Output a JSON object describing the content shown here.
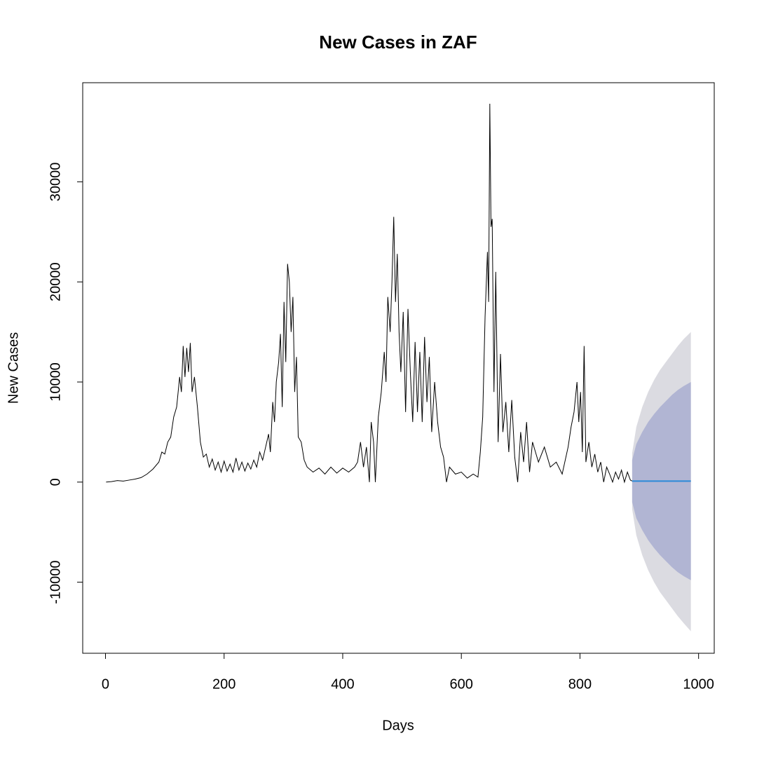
{
  "chart_data": {
    "type": "line",
    "title": "New Cases in ZAF",
    "x_label": "Days",
    "y_label": "New Cases",
    "xlim": [
      -38.4,
      1026.4
    ],
    "ylim": [
      -17100,
      39900
    ],
    "xticks": [
      0,
      200,
      400,
      600,
      800,
      1000
    ],
    "yticks": [
      -10000,
      0,
      10000,
      20000,
      30000
    ],
    "x": [
      1,
      10,
      20,
      30,
      40,
      50,
      60,
      70,
      80,
      90,
      95,
      100,
      105,
      110,
      115,
      120,
      125,
      128,
      131,
      134,
      137,
      140,
      143,
      146,
      150,
      155,
      160,
      165,
      170,
      175,
      180,
      185,
      190,
      195,
      200,
      205,
      210,
      215,
      220,
      225,
      230,
      235,
      240,
      245,
      250,
      255,
      260,
      265,
      270,
      275,
      278,
      282,
      285,
      288,
      292,
      295,
      298,
      301,
      304,
      307,
      310,
      313,
      316,
      319,
      322,
      325,
      330,
      335,
      340,
      350,
      360,
      370,
      380,
      390,
      400,
      410,
      420,
      425,
      430,
      435,
      440,
      445,
      448,
      452,
      455,
      460,
      465,
      470,
      473,
      476,
      480,
      483,
      486,
      489,
      492,
      495,
      498,
      502,
      506,
      510,
      514,
      518,
      522,
      526,
      530,
      534,
      538,
      542,
      546,
      550,
      555,
      560,
      565,
      570,
      575,
      580,
      590,
      600,
      610,
      620,
      628,
      632,
      636,
      640,
      644,
      646,
      648,
      650,
      652,
      655,
      658,
      662,
      666,
      670,
      675,
      680,
      685,
      690,
      695,
      700,
      705,
      710,
      715,
      720,
      730,
      740,
      750,
      760,
      770,
      780,
      785,
      790,
      795,
      798,
      801,
      804,
      807,
      810,
      815,
      820,
      825,
      830,
      835,
      840,
      845,
      850,
      855,
      860,
      865,
      870,
      875,
      880,
      885,
      888
    ],
    "series": [
      {
        "color": "#000000",
        "values": [
          0,
          50,
          150,
          100,
          200,
          300,
          450,
          800,
          1300,
          2000,
          3000,
          2800,
          4000,
          4500,
          6500,
          7500,
          10500,
          9000,
          13600,
          10500,
          13400,
          11000,
          13900,
          9000,
          10500,
          7500,
          4000,
          2500,
          2800,
          1500,
          2300,
          1200,
          2000,
          1000,
          2100,
          1100,
          1800,
          1000,
          2400,
          1200,
          2000,
          1100,
          1900,
          1300,
          2200,
          1500,
          3000,
          2200,
          3500,
          4800,
          3000,
          8000,
          6000,
          10000,
          12000,
          14800,
          7500,
          18000,
          12000,
          21800,
          20000,
          15000,
          18500,
          9000,
          12500,
          4500,
          4000,
          2200,
          1500,
          1000,
          1400,
          800,
          1500,
          900,
          1400,
          1000,
          1500,
          2000,
          4000,
          1500,
          3500,
          0,
          6000,
          4000,
          0,
          6500,
          9000,
          13000,
          10000,
          18500,
          15000,
          20000,
          26500,
          18000,
          22800,
          15000,
          11000,
          17000,
          7000,
          17300,
          11000,
          6000,
          14000,
          7000,
          13000,
          6000,
          14500,
          8000,
          12500,
          5000,
          10000,
          6000,
          3500,
          2500,
          0,
          1500,
          800,
          1000,
          400,
          800,
          500,
          3000,
          6500,
          16500,
          23000,
          18000,
          37800,
          25500,
          26300,
          9000,
          21000,
          4000,
          12800,
          5000,
          8000,
          3000,
          8200,
          2500,
          0,
          5000,
          2000,
          6000,
          1000,
          4000,
          2000,
          3500,
          1500,
          2000,
          800,
          3500,
          5500,
          7000,
          10000,
          6000,
          9000,
          3000,
          13600,
          2000,
          4000,
          1500,
          2800,
          1000,
          2000,
          0,
          1500,
          800,
          0,
          1000,
          300,
          1200,
          0,
          1000,
          200,
          100
        ]
      }
    ],
    "forecast": {
      "x": [
        888,
        895,
        905,
        915,
        925,
        935,
        945,
        955,
        965,
        975,
        987
      ],
      "mean": [
        100,
        100,
        100,
        100,
        100,
        100,
        100,
        100,
        100,
        100,
        100
      ],
      "mean_color": "#2b8ad8",
      "lower_80": [
        -2000,
        -3600,
        -4800,
        -5800,
        -6600,
        -7300,
        -7900,
        -8500,
        -9000,
        -9400,
        -9800
      ],
      "upper_80": [
        2200,
        3800,
        5000,
        6000,
        6800,
        7500,
        8100,
        8700,
        9200,
        9600,
        10000
      ],
      "color_80": "#b1b5d3",
      "lower_95": [
        -2700,
        -5300,
        -7300,
        -8800,
        -10000,
        -11000,
        -11800,
        -12600,
        -13400,
        -14100,
        -14900
      ],
      "upper_95": [
        2900,
        5500,
        7500,
        9000,
        10200,
        11200,
        12000,
        12800,
        13600,
        14300,
        15000
      ],
      "color_95": "#dbdbe1"
    }
  }
}
